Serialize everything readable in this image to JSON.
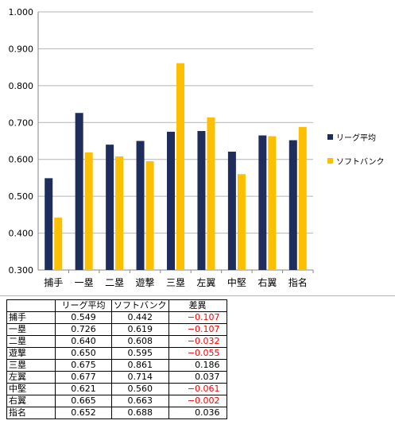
{
  "colors": {
    "league": "#1f2d5c",
    "softbank": "#fcc000",
    "negative": "#ff0000",
    "grid": "#b4b4b4"
  },
  "chart_data": {
    "type": "bar",
    "categories": [
      "捕手",
      "一塁",
      "二塁",
      "遊撃",
      "三塁",
      "左翼",
      "中堅",
      "右翼",
      "指名"
    ],
    "series": [
      {
        "name": "リーグ平均",
        "values": [
          0.549,
          0.726,
          0.64,
          0.65,
          0.675,
          0.677,
          0.621,
          0.665,
          0.652
        ]
      },
      {
        "name": "ソフトバンク",
        "values": [
          0.442,
          0.619,
          0.608,
          0.595,
          0.861,
          0.714,
          0.56,
          0.663,
          0.688
        ]
      }
    ],
    "ylim": [
      0.3,
      1.0
    ],
    "y_ticks": [
      "0.300",
      "0.400",
      "0.500",
      "0.600",
      "0.700",
      "0.800",
      "0.900",
      "1.000"
    ],
    "grid": true,
    "legend_position": "right"
  },
  "table": {
    "headers": [
      "",
      "リーグ平均",
      "ソフトバンク",
      "差異"
    ],
    "rows": [
      [
        "捕手",
        "0.549",
        "0.442",
        "−0.107"
      ],
      [
        "一塁",
        "0.726",
        "0.619",
        "−0.107"
      ],
      [
        "二塁",
        "0.640",
        "0.608",
        "−0.032"
      ],
      [
        "遊撃",
        "0.650",
        "0.595",
        "−0.055"
      ],
      [
        "三塁",
        "0.675",
        "0.861",
        "0.186"
      ],
      [
        "左翼",
        "0.677",
        "0.714",
        "0.037"
      ],
      [
        "中堅",
        "0.621",
        "0.560",
        "−0.061"
      ],
      [
        "右翼",
        "0.665",
        "0.663",
        "−0.002"
      ],
      [
        "指名",
        "0.652",
        "0.688",
        "0.036"
      ]
    ]
  }
}
